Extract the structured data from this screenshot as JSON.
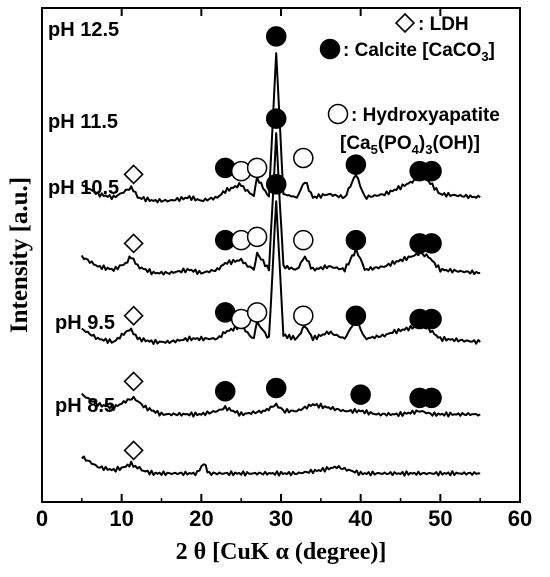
{
  "chart_data": {
    "type": "line",
    "xlabel": "2 θ [CuK α (degree)]",
    "ylabel": "Intensity [a.u.]",
    "xlim": [
      0,
      60
    ],
    "xticks": [
      0,
      10,
      20,
      30,
      40,
      50,
      60
    ],
    "grid": false,
    "legend_position": "top-right",
    "legend": [
      {
        "marker": "diamond-open",
        "label": ": LDH"
      },
      {
        "marker": "circle-filled",
        "label": ": Calcite [CaCO",
        "sub": "3",
        "tail": "]"
      },
      {
        "marker": "circle-open",
        "label": ": Hydroxyapatite",
        "line2": "[Ca",
        "line2_sub1": "5",
        "line2_mid": "(PO",
        "line2_sub2": "4",
        "line2_mid2": ")",
        "line2_sub3": "3",
        "line2_tail": "(OH)]"
      }
    ],
    "series": [
      {
        "name": "pH 12.5",
        "baseline": 0.84,
        "x": [
          5,
          7,
          9,
          10.5,
          11.2,
          12,
          14,
          16,
          18.5,
          20,
          22,
          23,
          25,
          26.6,
          27,
          28.5,
          29.4,
          30.3,
          32,
          33,
          34,
          36,
          38,
          39.4,
          40.5,
          43,
          44,
          47.5,
          48.5,
          50,
          55
        ],
        "y": [
          0.9,
          0.87,
          0.86,
          0.88,
          0.89,
          0.86,
          0.85,
          0.85,
          0.86,
          0.85,
          0.86,
          0.88,
          0.9,
          0.86,
          0.92,
          0.86,
          1.3,
          0.87,
          0.86,
          0.91,
          0.86,
          0.87,
          0.86,
          0.93,
          0.86,
          0.87,
          0.88,
          0.92,
          0.91,
          0.87,
          0.86
        ]
      },
      {
        "name": "pH 11.5",
        "baseline": 0.62,
        "x": [
          5,
          7,
          9,
          10.5,
          11.2,
          12,
          14,
          16,
          18.5,
          20,
          22,
          23,
          25,
          26.6,
          27,
          28.5,
          29.4,
          30.3,
          32,
          33,
          34,
          36,
          38,
          39.4,
          40.5,
          43,
          44,
          47.5,
          48.5,
          50,
          55
        ],
        "y": [
          0.68,
          0.65,
          0.64,
          0.66,
          0.68,
          0.65,
          0.63,
          0.63,
          0.64,
          0.63,
          0.64,
          0.66,
          0.67,
          0.64,
          0.69,
          0.64,
          1.05,
          0.65,
          0.64,
          0.68,
          0.64,
          0.65,
          0.64,
          0.7,
          0.64,
          0.65,
          0.66,
          0.69,
          0.68,
          0.64,
          0.63
        ]
      },
      {
        "name": "pH 10.5",
        "baseline": 0.41,
        "x": [
          5,
          7,
          9,
          10.5,
          11.2,
          12,
          14,
          16,
          18.5,
          20,
          22,
          23,
          25,
          26.6,
          27,
          28.5,
          29.4,
          30.3,
          32,
          33,
          34,
          36,
          38,
          39.4,
          40.5,
          43,
          44,
          47.5,
          48.5,
          50,
          55
        ],
        "y": [
          0.46,
          0.43,
          0.42,
          0.45,
          0.46,
          0.43,
          0.42,
          0.42,
          0.43,
          0.43,
          0.43,
          0.45,
          0.47,
          0.43,
          0.48,
          0.43,
          0.85,
          0.44,
          0.43,
          0.47,
          0.43,
          0.45,
          0.43,
          0.49,
          0.43,
          0.44,
          0.45,
          0.47,
          0.46,
          0.43,
          0.42
        ]
      },
      {
        "name": "pH 9.5",
        "baseline": 0.19,
        "x": [
          5,
          7,
          9,
          10.5,
          11.5,
          13,
          15,
          18,
          20,
          22,
          23,
          25,
          28,
          29.4,
          30.5,
          32,
          34,
          36,
          38,
          40,
          42,
          45,
          47.5,
          49,
          55
        ],
        "y": [
          0.26,
          0.23,
          0.22,
          0.24,
          0.25,
          0.22,
          0.2,
          0.2,
          0.2,
          0.21,
          0.22,
          0.2,
          0.21,
          0.23,
          0.21,
          0.21,
          0.23,
          0.22,
          0.21,
          0.21,
          0.2,
          0.2,
          0.21,
          0.2,
          0.2
        ]
      },
      {
        "name": "pH 8.5",
        "baseline": 0.0,
        "x": [
          5,
          7,
          9,
          10.5,
          11.2,
          12.5,
          14,
          16,
          18,
          19.5,
          20.3,
          21,
          23,
          26,
          29,
          32,
          35,
          37,
          40,
          45,
          50,
          55
        ],
        "y": [
          0.07,
          0.04,
          0.03,
          0.04,
          0.05,
          0.03,
          0.02,
          0.02,
          0.02,
          0.02,
          0.05,
          0.02,
          0.02,
          0.02,
          0.02,
          0.02,
          0.03,
          0.04,
          0.02,
          0.02,
          0.02,
          0.02
        ]
      }
    ],
    "markers": [
      {
        "series": "pH 12.5",
        "type": "diamond-open",
        "x": 11.5,
        "y": 0.93
      },
      {
        "series": "pH 12.5",
        "type": "circle-filled",
        "x": 23.0,
        "y": 0.95
      },
      {
        "series": "pH 12.5",
        "type": "circle-open",
        "x": 25.0,
        "y": 0.94
      },
      {
        "series": "pH 12.5",
        "type": "circle-open",
        "x": 27.0,
        "y": 0.95
      },
      {
        "series": "pH 12.5",
        "type": "circle-filled",
        "x": 29.4,
        "y": 1.35
      },
      {
        "series": "pH 12.5",
        "type": "circle-open",
        "x": 32.8,
        "y": 0.98
      },
      {
        "series": "pH 12.5",
        "type": "circle-filled",
        "x": 39.4,
        "y": 0.96
      },
      {
        "series": "pH 12.5",
        "type": "circle-filled",
        "x": 47.4,
        "y": 0.94
      },
      {
        "series": "pH 12.5",
        "type": "circle-filled",
        "x": 48.9,
        "y": 0.94
      },
      {
        "series": "pH 11.5",
        "type": "diamond-open",
        "x": 11.5,
        "y": 0.72
      },
      {
        "series": "pH 11.5",
        "type": "circle-filled",
        "x": 23.0,
        "y": 0.73
      },
      {
        "series": "pH 11.5",
        "type": "circle-open",
        "x": 25.0,
        "y": 0.73
      },
      {
        "series": "pH 11.5",
        "type": "circle-open",
        "x": 27.0,
        "y": 0.74
      },
      {
        "series": "pH 11.5",
        "type": "circle-filled",
        "x": 29.4,
        "y": 1.1
      },
      {
        "series": "pH 11.5",
        "type": "circle-open",
        "x": 32.8,
        "y": 0.73
      },
      {
        "series": "pH 11.5",
        "type": "circle-filled",
        "x": 39.4,
        "y": 0.73
      },
      {
        "series": "pH 11.5",
        "type": "circle-filled",
        "x": 47.4,
        "y": 0.72
      },
      {
        "series": "pH 11.5",
        "type": "circle-filled",
        "x": 48.9,
        "y": 0.72
      },
      {
        "series": "pH 10.5",
        "type": "diamond-open",
        "x": 11.5,
        "y": 0.5
      },
      {
        "series": "pH 10.5",
        "type": "circle-filled",
        "x": 23.0,
        "y": 0.51
      },
      {
        "series": "pH 10.5",
        "type": "circle-open",
        "x": 25.0,
        "y": 0.49
      },
      {
        "series": "pH 10.5",
        "type": "circle-open",
        "x": 27.0,
        "y": 0.51
      },
      {
        "series": "pH 10.5",
        "type": "circle-filled",
        "x": 29.4,
        "y": 0.9
      },
      {
        "series": "pH 10.5",
        "type": "circle-open",
        "x": 32.8,
        "y": 0.5
      },
      {
        "series": "pH 10.5",
        "type": "circle-filled",
        "x": 39.4,
        "y": 0.5
      },
      {
        "series": "pH 10.5",
        "type": "circle-filled",
        "x": 47.4,
        "y": 0.49
      },
      {
        "series": "pH 10.5",
        "type": "circle-filled",
        "x": 48.9,
        "y": 0.49
      },
      {
        "series": "pH 9.5",
        "type": "diamond-open",
        "x": 11.5,
        "y": 0.3
      },
      {
        "series": "pH 9.5",
        "type": "circle-filled",
        "x": 23.0,
        "y": 0.27
      },
      {
        "series": "pH 9.5",
        "type": "circle-filled",
        "x": 29.4,
        "y": 0.28
      },
      {
        "series": "pH 9.5",
        "type": "circle-filled",
        "x": 40.0,
        "y": 0.26
      },
      {
        "series": "pH 9.5",
        "type": "circle-filled",
        "x": 47.4,
        "y": 0.25
      },
      {
        "series": "pH 9.5",
        "type": "circle-filled",
        "x": 48.9,
        "y": 0.25
      },
      {
        "series": "pH 8.5",
        "type": "diamond-open",
        "x": 11.5,
        "y": 0.09
      }
    ]
  }
}
